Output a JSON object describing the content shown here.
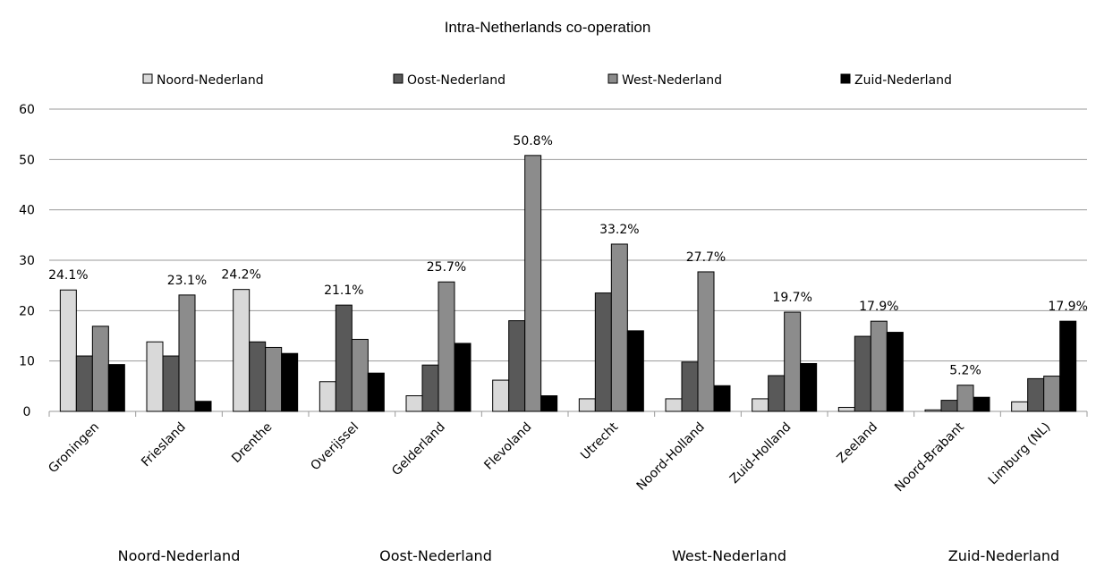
{
  "chart_data": {
    "type": "bar",
    "title": "Intra-Netherlands co-operation",
    "categories": [
      "Groningen",
      "Friesland",
      "Drenthe",
      "Overijssel",
      "Gelderland",
      "Flevoland",
      "Utrecht",
      "Noord-Holland",
      "Zuid-Holland",
      "Zeeland",
      "Noord-Brabant",
      "Limburg (NL)"
    ],
    "groups": [
      "Noord-Nederland",
      "Oost-Nederland",
      "West-Nederland",
      "Zuid-Nederland"
    ],
    "series": [
      {
        "name": "Noord-Nederland",
        "color": "#d9d9d9",
        "values": [
          24.1,
          13.8,
          24.2,
          5.9,
          3.1,
          6.2,
          2.5,
          2.5,
          2.5,
          0.8,
          0.3,
          1.9
        ],
        "value_labels": [
          "24.1%",
          null,
          "24.2%",
          null,
          null,
          null,
          null,
          null,
          null,
          null,
          null,
          null
        ]
      },
      {
        "name": "Oost-Nederland",
        "color": "#595959",
        "values": [
          11,
          11,
          13.8,
          21.1,
          9.2,
          18,
          23.5,
          9.8,
          7.1,
          14.9,
          2.2,
          6.5
        ],
        "value_labels": [
          null,
          null,
          null,
          "21.1%",
          null,
          null,
          null,
          null,
          null,
          null,
          null,
          null
        ]
      },
      {
        "name": "West-Nederland",
        "color": "#8c8c8c",
        "values": [
          16.9,
          23.1,
          12.7,
          14.3,
          25.7,
          50.8,
          33.2,
          27.7,
          19.7,
          17.9,
          5.2,
          7
        ],
        "value_labels": [
          null,
          "23.1%",
          null,
          null,
          "25.7%",
          "50.8%",
          "33.2%",
          "27.7%",
          "19.7%",
          "17.9%",
          "5.2%",
          null
        ]
      },
      {
        "name": "Zuid-Nederland",
        "color": "#000000",
        "values": [
          9.3,
          2,
          11.5,
          7.6,
          13.5,
          3.1,
          16,
          5.1,
          9.5,
          15.7,
          2.8,
          17.9
        ],
        "value_labels": [
          null,
          null,
          null,
          null,
          null,
          null,
          null,
          null,
          null,
          null,
          null,
          "17.9%"
        ]
      }
    ],
    "ylim": [
      0,
      60
    ],
    "yticks": [
      0,
      10,
      20,
      30,
      40,
      50,
      60
    ],
    "grid": true
  }
}
